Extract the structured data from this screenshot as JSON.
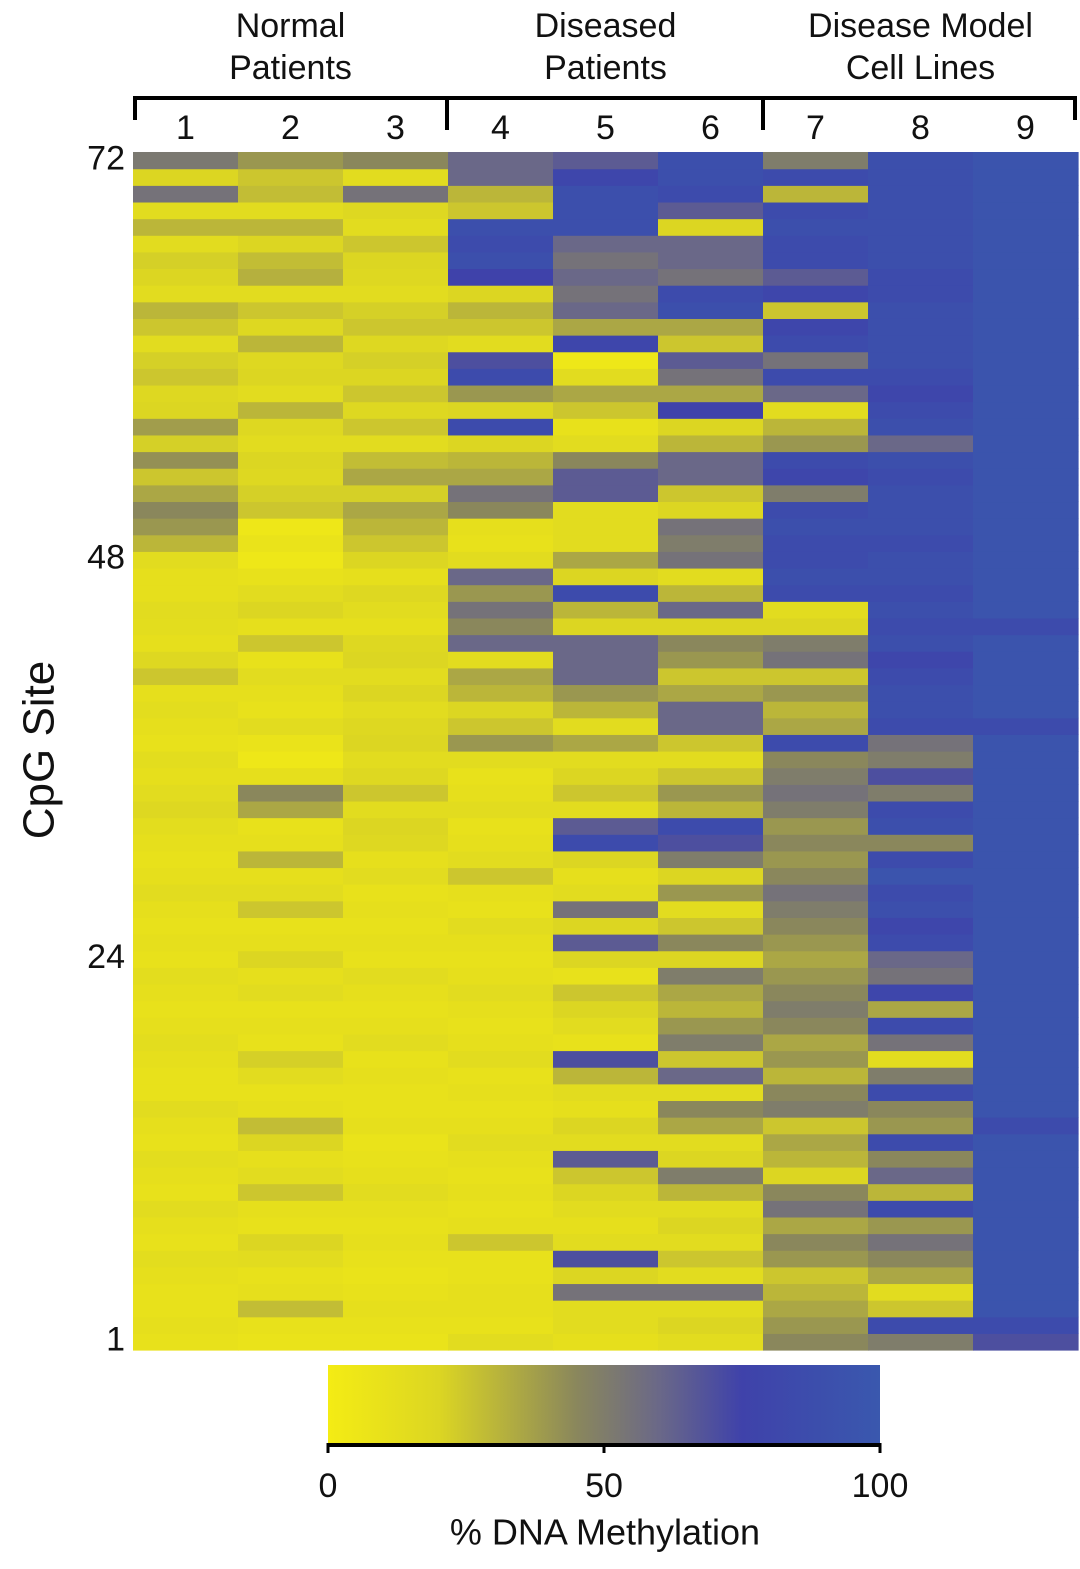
{
  "chart_data": {
    "type": "heatmap",
    "groups": [
      [
        "Normal",
        "Patients"
      ],
      [
        "Diseased",
        "Patients"
      ],
      [
        "Disease Model",
        "Cell Lines"
      ]
    ],
    "ylabel": "CpG Site",
    "ylim": [
      0.5,
      72.5
    ],
    "yticks": [
      1,
      24,
      48,
      72
    ],
    "series": [
      {
        "name": "1",
        "values": [
          10,
          12,
          10,
          10,
          12,
          14,
          10,
          12,
          15,
          10,
          12,
          14,
          10,
          12,
          15,
          10,
          10,
          12,
          14,
          12,
          10,
          12,
          14,
          10,
          12,
          10,
          12,
          15,
          12,
          10,
          12,
          14,
          18,
          15,
          12,
          14,
          10,
          12,
          14,
          12,
          25,
          18,
          12,
          14,
          15,
          12,
          12,
          15,
          30,
          40,
          45,
          35,
          25,
          42,
          22,
          38,
          20,
          18,
          25,
          22,
          15,
          25,
          30,
          15,
          20,
          22,
          15,
          30,
          15,
          55,
          20,
          52
        ]
      },
      {
        "name": "2",
        "values": [
          8,
          10,
          28,
          12,
          10,
          15,
          20,
          10,
          12,
          25,
          15,
          12,
          20,
          28,
          12,
          10,
          15,
          22,
          10,
          12,
          10,
          15,
          12,
          20,
          12,
          10,
          25,
          15,
          12,
          30,
          12,
          10,
          35,
          45,
          12,
          5,
          8,
          15,
          10,
          12,
          15,
          10,
          25,
          12,
          20,
          15,
          10,
          5,
          8,
          5,
          25,
          22,
          18,
          20,
          15,
          18,
          30,
          15,
          20,
          18,
          30,
          18,
          25,
          15,
          32,
          28,
          20,
          30,
          15,
          28,
          25,
          40
        ]
      },
      {
        "name": "3",
        "values": [
          8,
          10,
          12,
          10,
          8,
          10,
          12,
          10,
          12,
          15,
          12,
          10,
          8,
          12,
          10,
          10,
          12,
          10,
          15,
          12,
          10,
          12,
          15,
          10,
          12,
          10,
          12,
          10,
          15,
          12,
          18,
          20,
          15,
          25,
          18,
          15,
          20,
          18,
          15,
          20,
          15,
          20,
          18,
          12,
          15,
          18,
          12,
          20,
          25,
          30,
          35,
          22,
          35,
          28,
          15,
          25,
          18,
          25,
          20,
          22,
          18,
          25,
          22,
          15,
          18,
          20,
          25,
          15,
          18,
          55,
          15,
          45
        ]
      },
      {
        "name": "4",
        "values": [
          15,
          10,
          12,
          12,
          10,
          10,
          25,
          12,
          10,
          12,
          10,
          12,
          15,
          12,
          10,
          12,
          10,
          15,
          12,
          10,
          12,
          15,
          12,
          10,
          12,
          15,
          10,
          12,
          25,
          15,
          12,
          10,
          15,
          12,
          10,
          15,
          40,
          25,
          20,
          30,
          35,
          15,
          60,
          45,
          55,
          40,
          60,
          15,
          10,
          12,
          45,
          55,
          35,
          30,
          20,
          85,
          20,
          40,
          85,
          70,
          15,
          25,
          30,
          20,
          75,
          90,
          85,
          90,
          25,
          30,
          60,
          60
        ]
      },
      {
        "name": "5",
        "values": [
          12,
          15,
          15,
          55,
          20,
          70,
          15,
          12,
          15,
          20,
          25,
          65,
          15,
          20,
          12,
          15,
          30,
          70,
          10,
          15,
          20,
          25,
          10,
          20,
          65,
          20,
          55,
          15,
          12,
          20,
          85,
          65,
          15,
          25,
          20,
          15,
          35,
          15,
          30,
          40,
          60,
          60,
          60,
          20,
          30,
          85,
          20,
          35,
          15,
          15,
          15,
          65,
          65,
          45,
          15,
          10,
          25,
          35,
          15,
          5,
          80,
          35,
          60,
          55,
          60,
          55,
          60,
          90,
          90,
          90,
          80,
          65
        ]
      },
      {
        "name": "6",
        "values": [
          15,
          20,
          15,
          55,
          15,
          25,
          15,
          20,
          15,
          30,
          50,
          20,
          15,
          35,
          45,
          15,
          60,
          25,
          50,
          40,
          30,
          35,
          50,
          20,
          45,
          25,
          15,
          40,
          20,
          50,
          70,
          85,
          30,
          40,
          25,
          15,
          25,
          60,
          60,
          35,
          25,
          40,
          45,
          20,
          60,
          30,
          15,
          55,
          50,
          55,
          20,
          25,
          60,
          60,
          30,
          20,
          75,
          35,
          55,
          65,
          25,
          35,
          90,
          85,
          55,
          60,
          60,
          20,
          65,
          85,
          90,
          90
        ]
      },
      {
        "name": "7",
        "values": [
          45,
          40,
          35,
          30,
          25,
          40,
          45,
          35,
          55,
          45,
          20,
          30,
          35,
          25,
          50,
          45,
          30,
          40,
          35,
          45,
          50,
          45,
          40,
          35,
          40,
          45,
          50,
          55,
          45,
          40,
          45,
          40,
          50,
          55,
          50,
          45,
          85,
          35,
          30,
          40,
          25,
          55,
          50,
          20,
          15,
          85,
          90,
          85,
          85,
          90,
          85,
          50,
          80,
          85,
          40,
          30,
          15,
          60,
          85,
          55,
          85,
          80,
          25,
          80,
          65,
          85,
          85,
          90,
          85,
          30,
          85,
          50
        ]
      },
      {
        "name": "8",
        "values": [
          50,
          85,
          25,
          15,
          35,
          45,
          55,
          40,
          85,
          30,
          60,
          45,
          85,
          40,
          45,
          85,
          50,
          15,
          55,
          85,
          35,
          80,
          55,
          60,
          85,
          80,
          90,
          85,
          95,
          85,
          45,
          90,
          85,
          50,
          70,
          50,
          55,
          85,
          90,
          90,
          85,
          80,
          90,
          85,
          90,
          85,
          90,
          90,
          85,
          90,
          90,
          90,
          85,
          90,
          60,
          90,
          85,
          80,
          85,
          90,
          90,
          90,
          90,
          85,
          85,
          90,
          90,
          90,
          90,
          90,
          90,
          90
        ]
      },
      {
        "name": "9",
        "values": [
          70,
          85,
          95,
          95,
          95,
          95,
          95,
          95,
          95,
          95,
          95,
          95,
          95,
          85,
          95,
          95,
          95,
          95,
          95,
          95,
          95,
          95,
          95,
          95,
          95,
          95,
          95,
          95,
          95,
          95,
          95,
          95,
          95,
          95,
          95,
          95,
          95,
          85,
          95,
          95,
          95,
          95,
          95,
          85,
          95,
          95,
          95,
          95,
          95,
          95,
          95,
          95,
          95,
          95,
          95,
          95,
          95,
          95,
          95,
          95,
          95,
          95,
          95,
          95,
          95,
          95,
          95,
          95,
          95,
          95,
          95,
          95
        ]
      }
    ],
    "colorbar": {
      "label": "% DNA Methylation",
      "lim": [
        0,
        100
      ],
      "ticks": [
        0,
        50,
        100
      ],
      "colormap": [
        {
          "value": 0,
          "color": "#f4ec14"
        },
        {
          "value": 20,
          "color": "#dcd622"
        },
        {
          "value": 45,
          "color": "#8a875c"
        },
        {
          "value": 60,
          "color": "#6a6888"
        },
        {
          "value": 75,
          "color": "#3f42aa"
        },
        {
          "value": 100,
          "color": "#3a58ae"
        }
      ]
    }
  }
}
